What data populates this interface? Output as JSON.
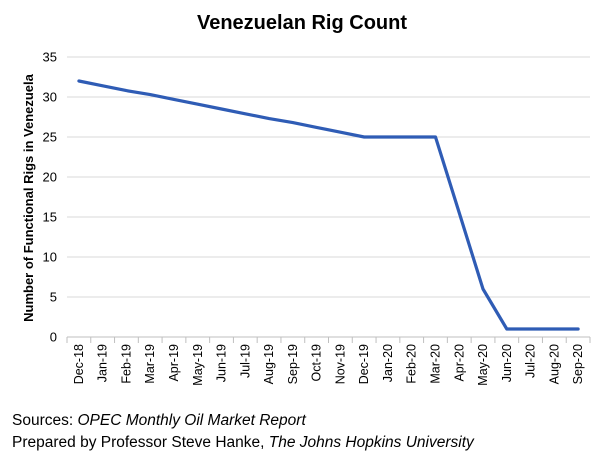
{
  "chart_data": {
    "type": "line",
    "title": "Venezuelan Rig Count",
    "xlabel": "",
    "ylabel": "Number of Functional Rigs in Venezuela",
    "ylim": [
      0,
      35
    ],
    "yticks": [
      0,
      5,
      10,
      15,
      20,
      25,
      30,
      35
    ],
    "grid": true,
    "legend": "none",
    "categories": [
      "Dec-18",
      "Jan-19",
      "Feb-19",
      "Mar-19",
      "Apr-19",
      "May-19",
      "Jun-19",
      "Jul-19",
      "Aug-19",
      "Sep-19",
      "Oct-19",
      "Nov-19",
      "Dec-19",
      "Jan-20",
      "Feb-20",
      "Mar-20",
      "Apr-20",
      "May-20",
      "Jun-20",
      "Jul-20",
      "Aug-20",
      "Sep-20"
    ],
    "series": [
      {
        "color": "#2f5cb5",
        "values": [
          32,
          31.4,
          30.8,
          30.3,
          29.7,
          29.1,
          28.5,
          27.9,
          27.3,
          26.8,
          26.2,
          25.6,
          25,
          25,
          25,
          25,
          15.5,
          6,
          1,
          1,
          1,
          1
        ]
      }
    ]
  },
  "footer": {
    "sources_prefix": "Sources: ",
    "sources_name": "OPEC Monthly Oil Market Report",
    "prepared_prefix": "Prepared by Professor Steve Hanke, ",
    "prepared_institution": "The Johns Hopkins University"
  },
  "colors": {
    "grid": "#d9d9d9",
    "axis": "#bfbfbf",
    "line": "#2f5cb5"
  }
}
